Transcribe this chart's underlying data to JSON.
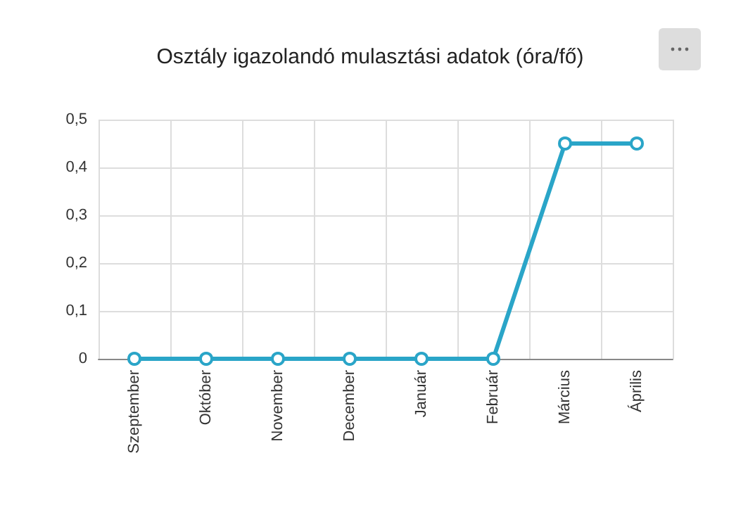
{
  "chart_data": {
    "type": "line",
    "title": "Osztály igazolandó mulasztási adatok (óra/fő)",
    "categories": [
      "Szeptember",
      "Október",
      "November",
      "December",
      "Január",
      "Február",
      "Március",
      "Április"
    ],
    "series": [
      {
        "color": "#2aa5c8",
        "values": [
          0,
          0,
          0,
          0,
          0,
          0,
          0.45,
          0.45
        ]
      }
    ],
    "ylim": [
      0,
      0.5
    ],
    "yticks": [
      0,
      {
        "value": 0.1,
        "label": "0,1"
      },
      {
        "value": 0.2,
        "label": "0,2"
      },
      {
        "value": 0.3,
        "label": "0,3"
      },
      {
        "value": 0.4,
        "label": "0,4"
      },
      {
        "value": 0.5,
        "label": "0,5"
      }
    ],
    "grid": true,
    "marker": "circle",
    "line_style": "solid"
  }
}
